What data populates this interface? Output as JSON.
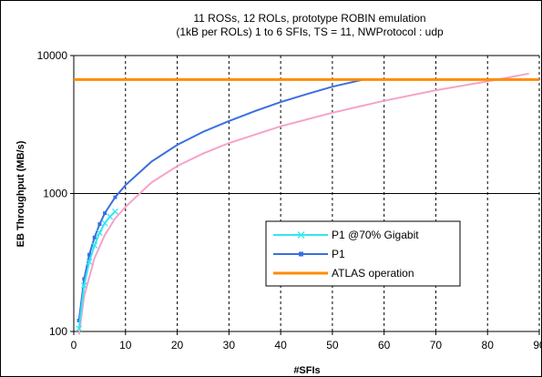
{
  "chart_data": {
    "type": "line",
    "title_line1": "11 ROSs, 12 ROLs, prototype ROBIN emulation",
    "title_line2": "(1kB per ROLs) 1 to 6 SFIs, TS = 11, NWProtocol : udp",
    "xlabel": "#SFIs",
    "ylabel": "EB Throughput (MB/s)",
    "xlim": [
      0,
      90
    ],
    "ylim": [
      100,
      10000
    ],
    "yscale": "log",
    "grid": true,
    "legend_position": "center-right",
    "x_ticks": [
      "0",
      "10",
      "20",
      "30",
      "40",
      "50",
      "60",
      "70",
      "80",
      "90"
    ],
    "y_ticks": [
      "100",
      "1000",
      "10000"
    ],
    "series": [
      {
        "name": "P1 @70% Gigabit",
        "color": "#33e6f0",
        "marker": "x",
        "x": [
          1,
          2,
          3,
          4,
          5,
          6,
          7,
          8
        ],
        "y": [
          105,
          215,
          320,
          420,
          520,
          610,
          680,
          740
        ]
      },
      {
        "name": "P1",
        "color": "#3a6fe0",
        "marker": "square",
        "x": [
          1,
          2,
          3,
          4,
          5,
          6,
          8,
          10,
          15,
          20,
          25,
          30,
          35,
          40,
          45,
          50,
          56
        ],
        "y": [
          120,
          240,
          360,
          480,
          600,
          720,
          940,
          1150,
          1700,
          2250,
          2800,
          3350,
          3950,
          4600,
          5250,
          5950,
          6700
        ]
      },
      {
        "name": "",
        "color": "#f5a3c8",
        "marker": "none",
        "x": [
          1,
          2,
          4,
          6,
          8,
          10,
          15,
          20,
          25,
          30,
          40,
          50,
          60,
          70,
          80,
          88
        ],
        "y": [
          95,
          180,
          340,
          500,
          660,
          800,
          1200,
          1580,
          1950,
          2320,
          3070,
          3850,
          4700,
          5600,
          6500,
          7400
        ]
      },
      {
        "name": "ATLAS operation",
        "color": "#ff8c00",
        "marker": "none",
        "x": [
          0,
          90
        ],
        "y": [
          6700,
          6700
        ]
      }
    ]
  }
}
